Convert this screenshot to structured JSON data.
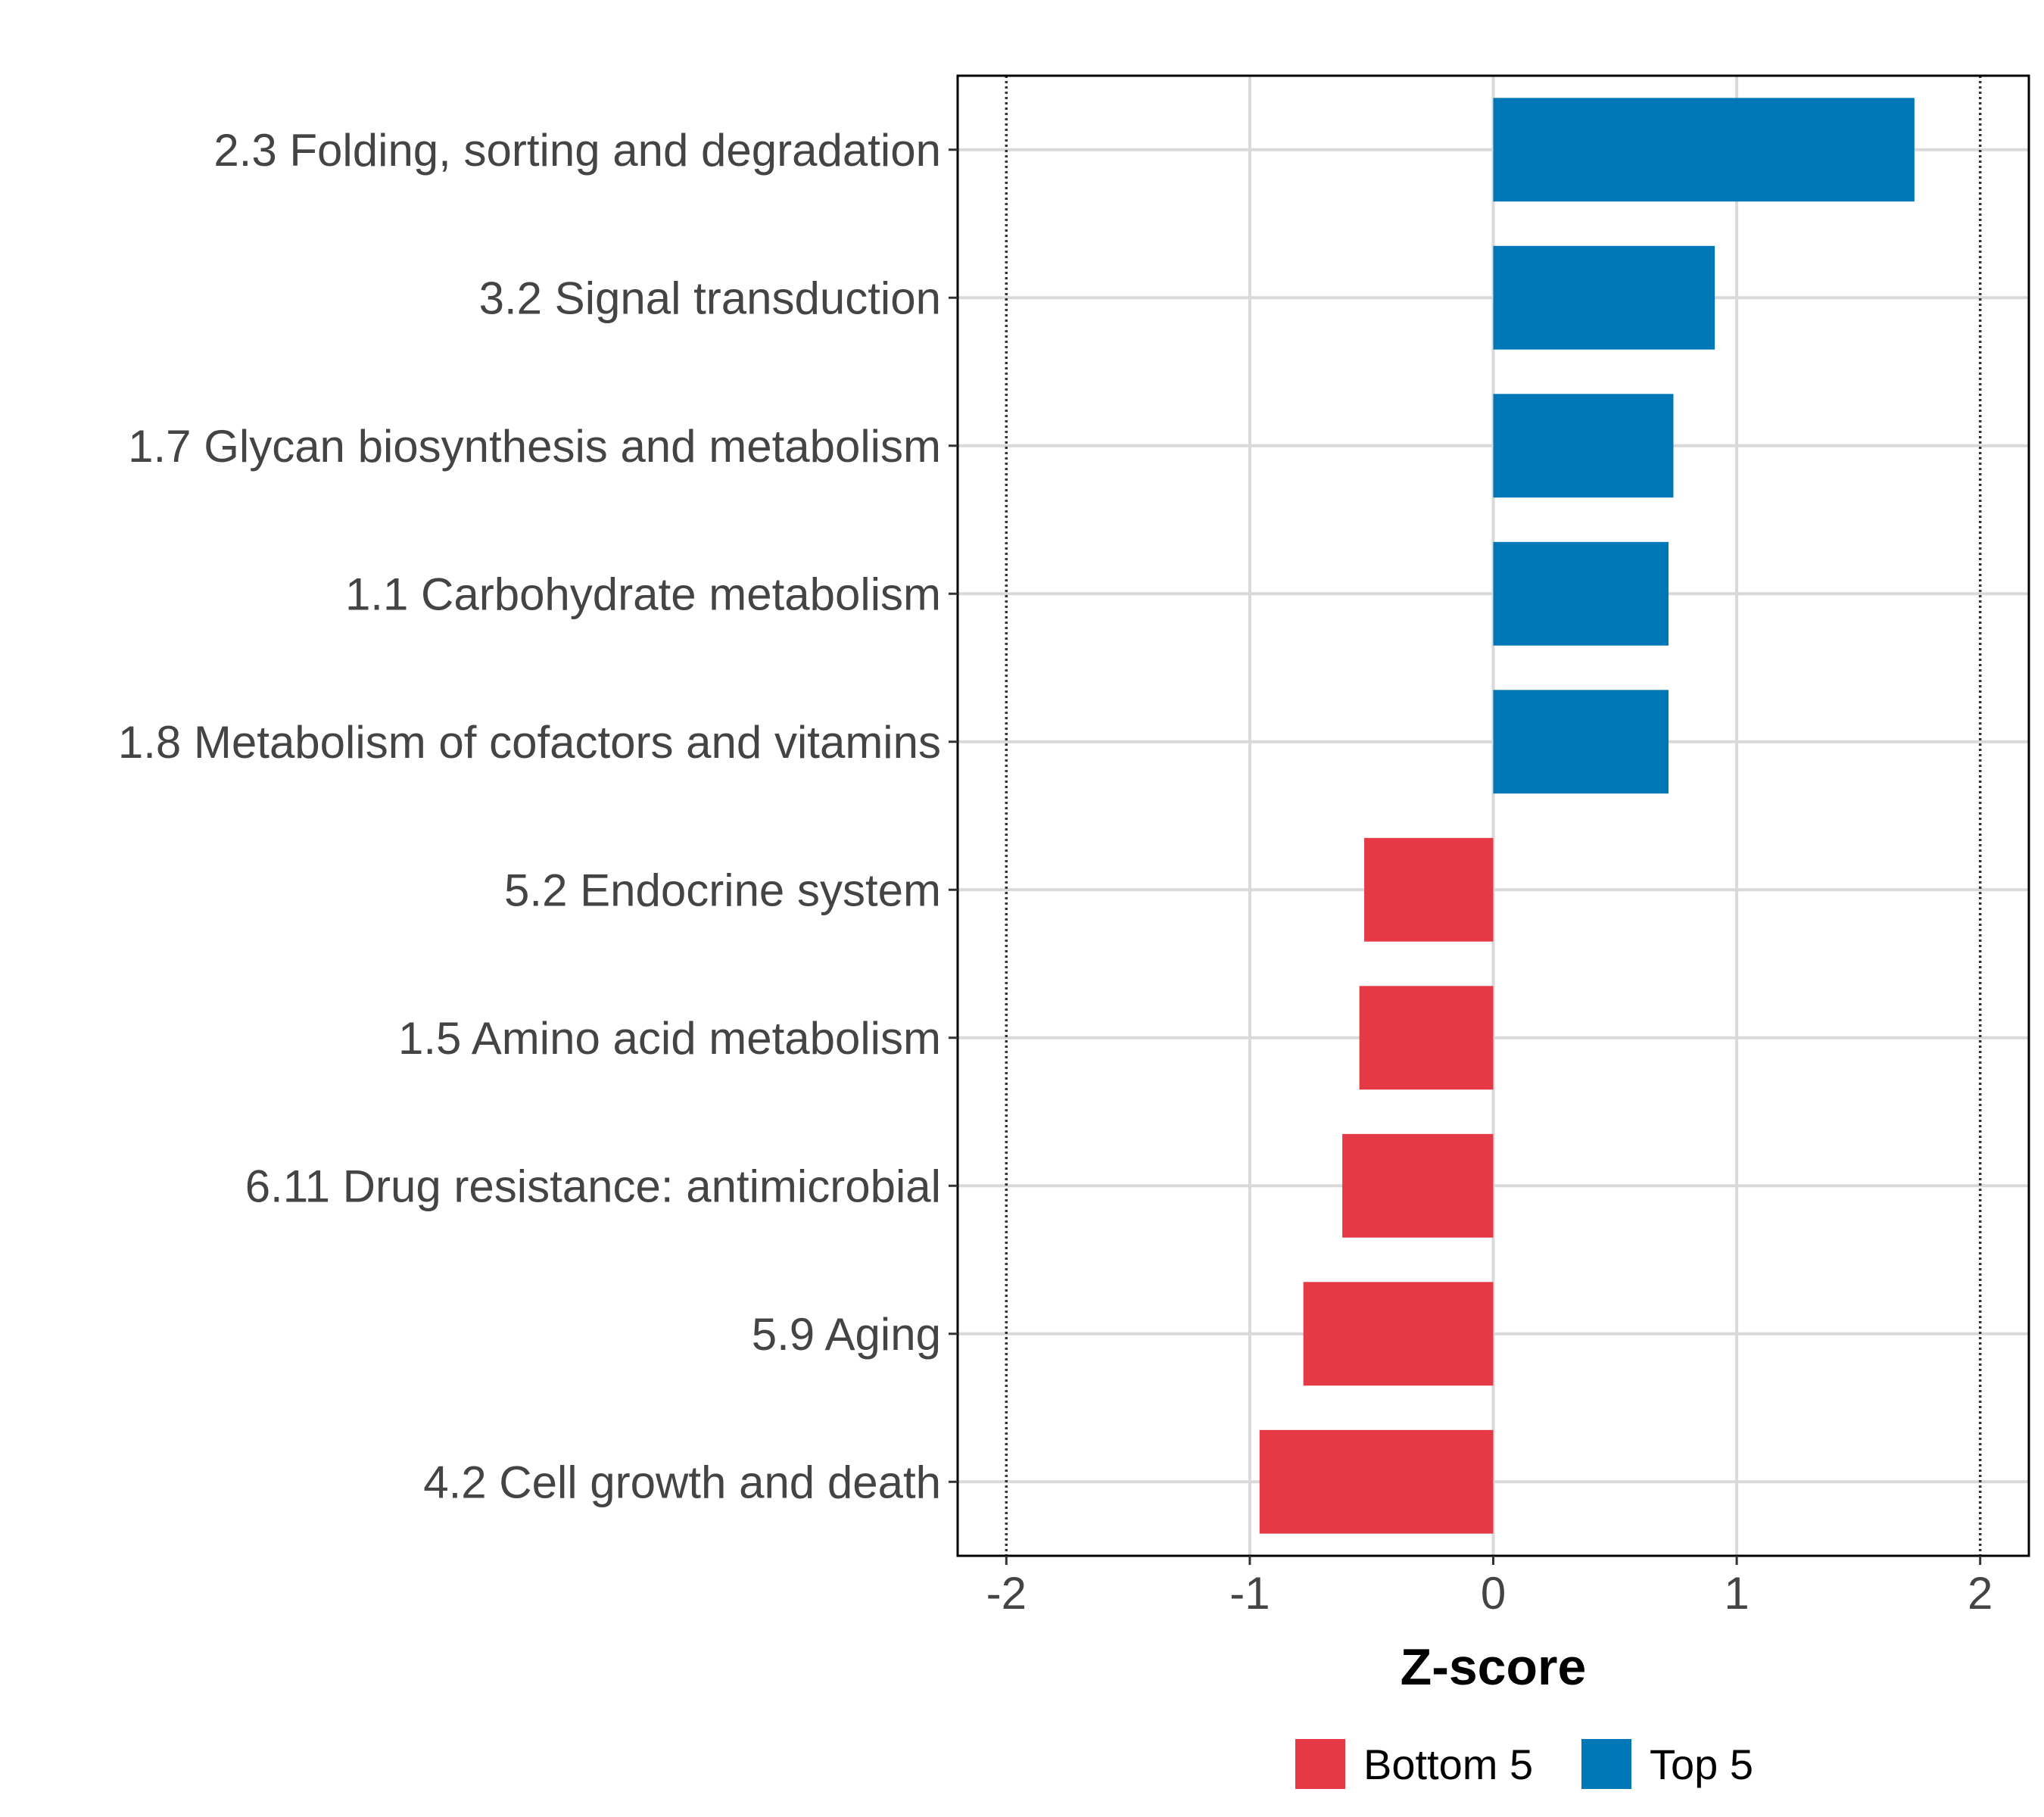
{
  "chart_data": {
    "type": "bar",
    "orientation": "horizontal",
    "title": "",
    "xlabel": "Z-score",
    "ylabel": "",
    "xlim": [
      -2.2,
      2.2
    ],
    "x_ticks": [
      -2,
      -1,
      0,
      1,
      2
    ],
    "x_tick_labels": [
      "-2",
      "-1",
      "0",
      "1",
      "2"
    ],
    "reference_lines": [
      -2,
      2
    ],
    "grid": true,
    "categories": [
      "2.3 Folding, sorting and degradation",
      "3.2 Signal transduction",
      "1.7 Glycan biosynthesis and metabolism",
      "1.1 Carbohydrate metabolism",
      "1.8 Metabolism of cofactors and vitamins",
      "5.2 Endocrine system",
      "1.5 Amino acid metabolism",
      "6.11 Drug resistance: antimicrobial",
      "5.9 Aging",
      "4.2 Cell growth and death"
    ],
    "values": [
      1.73,
      0.91,
      0.74,
      0.72,
      0.72,
      -0.53,
      -0.55,
      -0.62,
      -0.78,
      -0.96
    ],
    "groups": [
      "Top 5",
      "Top 5",
      "Top 5",
      "Top 5",
      "Top 5",
      "Bottom 5",
      "Bottom 5",
      "Bottom 5",
      "Bottom 5",
      "Bottom 5"
    ],
    "legend": {
      "position": "bottom",
      "entries": [
        {
          "label": "Bottom 5",
          "color": "#e63946"
        },
        {
          "label": "Top 5",
          "color": "#0077b6"
        }
      ]
    }
  }
}
